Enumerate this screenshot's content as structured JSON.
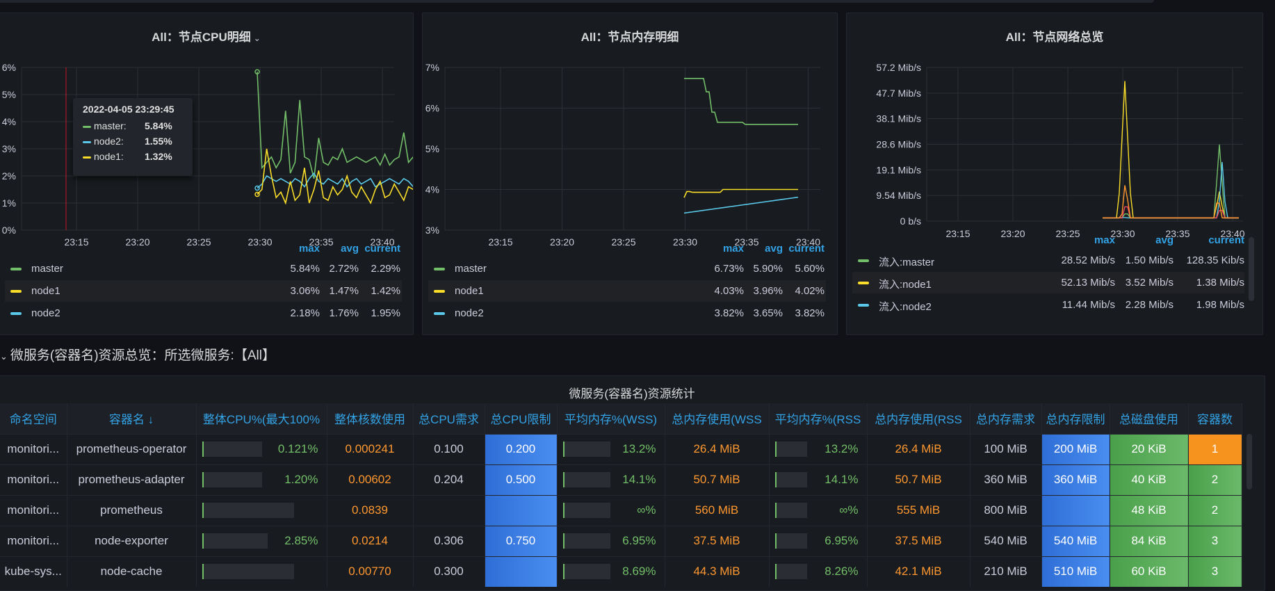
{
  "panels": {
    "cpu": {
      "title": "All：节点CPU明细",
      "yticks": [
        "6%",
        "5%",
        "4%",
        "3%",
        "2%",
        "1%",
        "0%"
      ],
      "xticks": [
        "23:15",
        "23:20",
        "23:25",
        "23:30",
        "23:35",
        "23:40"
      ],
      "legend_headers": {
        "max": "max",
        "avg": "avg",
        "current": "current"
      },
      "legend": [
        {
          "name": "master",
          "max": "5.84%",
          "avg": "2.72%",
          "current": "2.29%",
          "color": "#73bf69"
        },
        {
          "name": "node1",
          "max": "3.06%",
          "avg": "1.47%",
          "current": "1.42%",
          "color": "#fade2a"
        },
        {
          "name": "node2",
          "max": "2.18%",
          "avg": "1.76%",
          "current": "1.95%",
          "color": "#5ac8e8"
        }
      ],
      "tooltip": {
        "time": "2022-04-05 23:29:45",
        "rows": [
          {
            "name": "master:",
            "value": "5.84%",
            "color": "#73bf69"
          },
          {
            "name": "node2:",
            "value": "1.55%",
            "color": "#5ac8e8"
          },
          {
            "name": "node1:",
            "value": "1.32%",
            "color": "#fade2a"
          }
        ]
      }
    },
    "mem": {
      "title": "All：节点内存明细",
      "yticks": [
        "7%",
        "6%",
        "5%",
        "4%",
        "3%"
      ],
      "xticks": [
        "23:15",
        "23:20",
        "23:25",
        "23:30",
        "23:35",
        "23:40"
      ],
      "legend_headers": {
        "max": "max",
        "avg": "avg",
        "current": "current"
      },
      "legend": [
        {
          "name": "master",
          "max": "6.73%",
          "avg": "5.90%",
          "current": "5.60%",
          "color": "#73bf69"
        },
        {
          "name": "node1",
          "max": "4.03%",
          "avg": "3.96%",
          "current": "4.02%",
          "color": "#fade2a"
        },
        {
          "name": "node2",
          "max": "3.82%",
          "avg": "3.65%",
          "current": "3.82%",
          "color": "#5ac8e8"
        }
      ]
    },
    "net": {
      "title": "All：节点网络总览",
      "yticks": [
        "57.2 Mib/s",
        "47.7 Mib/s",
        "38.1 Mib/s",
        "28.6 Mib/s",
        "19.1 Mib/s",
        "9.54 Mib/s",
        "0 b/s"
      ],
      "xticks": [
        "23:15",
        "23:20",
        "23:25",
        "23:30",
        "23:35",
        "23:40"
      ],
      "legend_headers": {
        "max": "max",
        "avg": "avg",
        "current": "current"
      },
      "legend": [
        {
          "name": "流入:master",
          "max": "28.52 Mib/s",
          "avg": "1.50 Mib/s",
          "current": "128.35 Kib/s",
          "color": "#73bf69"
        },
        {
          "name": "流入:node1",
          "max": "52.13 Mib/s",
          "avg": "3.52 Mib/s",
          "current": "1.38 Mib/s",
          "color": "#fade2a"
        },
        {
          "name": "流入:node2",
          "max": "11.44 Mib/s",
          "avg": "2.28 Mib/s",
          "current": "1.98 Mib/s",
          "color": "#5ac8e8"
        }
      ]
    }
  },
  "section": {
    "title": "微服务(容器名)资源总览：所选微服务:【All】"
  },
  "table": {
    "title": "微服务(容器名)资源统计",
    "columns": [
      "命名空间",
      "容器名 ↓",
      "整体CPU%(最大100%",
      "整体核数使用",
      "总CPU需求",
      "总CPU限制",
      "平均内存%(WSS)",
      "总内存使用(WSS",
      "平均内存%(RSS",
      "总内存使用(RSS",
      "总内存需求",
      "总内存限制",
      "总磁盘使用",
      "容器数"
    ],
    "rows": [
      {
        "ns": "monitori...",
        "name": "prometheus-operator",
        "cpu_pct": "0.121%",
        "cpu_frac": 0.00121,
        "cores": "0.000241",
        "cpu_req": "0.100",
        "cpu_lim": "0.200",
        "mem_wss_pct": "13.2%",
        "mem_wss_frac": 0.132,
        "mem_wss": "26.4 MiB",
        "mem_rss_pct": "13.2%",
        "mem_rss_frac": 0.132,
        "mem_rss": "26.4 MiB",
        "mem_req": "100 MiB",
        "mem_lim": "200 MiB",
        "disk": "20 KiB",
        "count": "1",
        "count_color": "orange"
      },
      {
        "ns": "monitori...",
        "name": "prometheus-adapter",
        "cpu_pct": "1.20%",
        "cpu_frac": 0.012,
        "cores": "0.00602",
        "cpu_req": "0.204",
        "cpu_lim": "0.500",
        "mem_wss_pct": "14.1%",
        "mem_wss_frac": 0.141,
        "mem_wss": "50.7 MiB",
        "mem_rss_pct": "14.1%",
        "mem_rss_frac": 0.141,
        "mem_rss": "50.7 MiB",
        "mem_req": "360 MiB",
        "mem_lim": "360 MiB",
        "disk": "40 KiB",
        "count": "2",
        "count_color": "green"
      },
      {
        "ns": "monitori...",
        "name": "prometheus",
        "cpu_pct": "",
        "cpu_frac": 0,
        "cores": "0.0839",
        "cpu_req": "",
        "cpu_lim": "",
        "mem_wss_pct": "∞%",
        "mem_wss_frac": 0,
        "mem_wss": "560 MiB",
        "mem_rss_pct": "∞%",
        "mem_rss_frac": 0,
        "mem_rss": "555 MiB",
        "mem_req": "800 MiB",
        "mem_lim": "",
        "disk": "48 KiB",
        "count": "2",
        "count_color": "green"
      },
      {
        "ns": "monitori...",
        "name": "node-exporter",
        "cpu_pct": "2.85%",
        "cpu_frac": 0.0285,
        "cores": "0.0214",
        "cpu_req": "0.306",
        "cpu_lim": "0.750",
        "mem_wss_pct": "6.95%",
        "mem_wss_frac": 0.0695,
        "mem_wss": "37.5 MiB",
        "mem_rss_pct": "6.95%",
        "mem_rss_frac": 0.0695,
        "mem_rss": "37.5 MiB",
        "mem_req": "540 MiB",
        "mem_lim": "540 MiB",
        "disk": "84 KiB",
        "count": "3",
        "count_color": "green"
      },
      {
        "ns": "kube-sys...",
        "name": "node-cache",
        "cpu_pct": "",
        "cpu_frac": 0,
        "cores": "0.00770",
        "cpu_req": "0.300",
        "cpu_lim": "",
        "mem_wss_pct": "8.69%",
        "mem_wss_frac": 0.0869,
        "mem_wss": "44.3 MiB",
        "mem_rss_pct": "8.26%",
        "mem_rss_frac": 0.0826,
        "mem_rss": "42.1 MiB",
        "mem_req": "210 MiB",
        "mem_lim": "510 MiB",
        "disk": "60 KiB",
        "count": "3",
        "count_color": "green"
      }
    ]
  }
}
